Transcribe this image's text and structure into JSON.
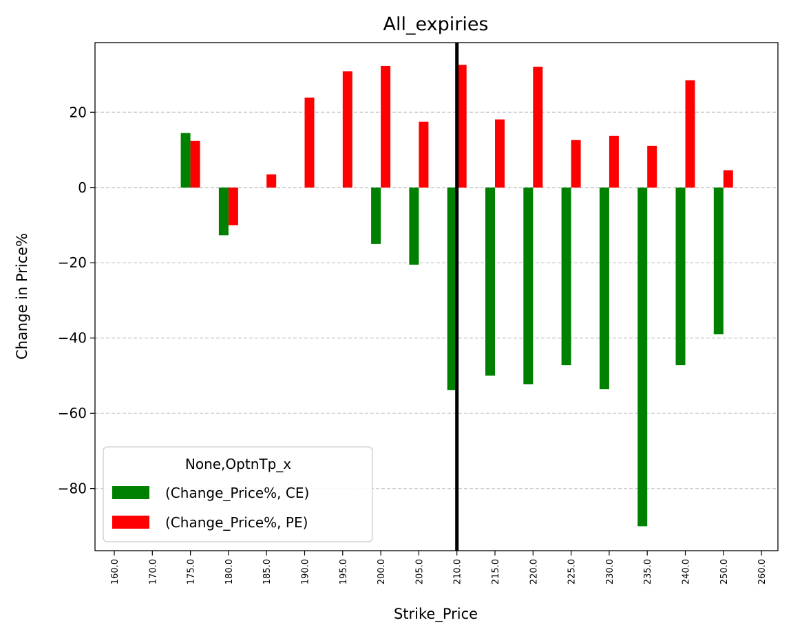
{
  "chart_data": {
    "type": "bar",
    "title": "All_expiries",
    "xlabel": "Strike_Price",
    "ylabel": "Change in Price%",
    "categories": [
      "160.0",
      "170.0",
      "175.0",
      "180.0",
      "185.0",
      "190.0",
      "195.0",
      "200.0",
      "205.0",
      "210.0",
      "215.0",
      "220.0",
      "225.0",
      "230.0",
      "235.0",
      "240.0",
      "250.0",
      "260.0"
    ],
    "series": [
      {
        "name": "(Change_Price%, CE)",
        "color": "#008000",
        "values": [
          null,
          null,
          14.5,
          -12.7,
          null,
          null,
          null,
          -15.0,
          -20.5,
          -53.8,
          -50.0,
          -52.3,
          -47.2,
          -53.6,
          -90.0,
          -47.2,
          -39.0,
          null
        ]
      },
      {
        "name": "(Change_Price%, PE)",
        "color": "#ff0000",
        "values": [
          null,
          null,
          12.4,
          -10.0,
          3.5,
          23.9,
          30.9,
          32.3,
          17.5,
          32.6,
          18.1,
          32.1,
          12.6,
          13.7,
          11.1,
          28.5,
          4.6,
          null
        ]
      }
    ],
    "yticks": [
      20,
      0,
      -20,
      -40,
      -60,
      -80
    ],
    "ytick_labels": [
      "20",
      "0",
      "−20",
      "−40",
      "−60",
      "−80"
    ],
    "ylim": [
      -96.5,
      38.5
    ],
    "grid": "y dashed",
    "legend": {
      "title": "None,OptnTp_x",
      "position": "lower-left"
    },
    "vline": {
      "category": "210.0",
      "color": "#000000"
    }
  }
}
